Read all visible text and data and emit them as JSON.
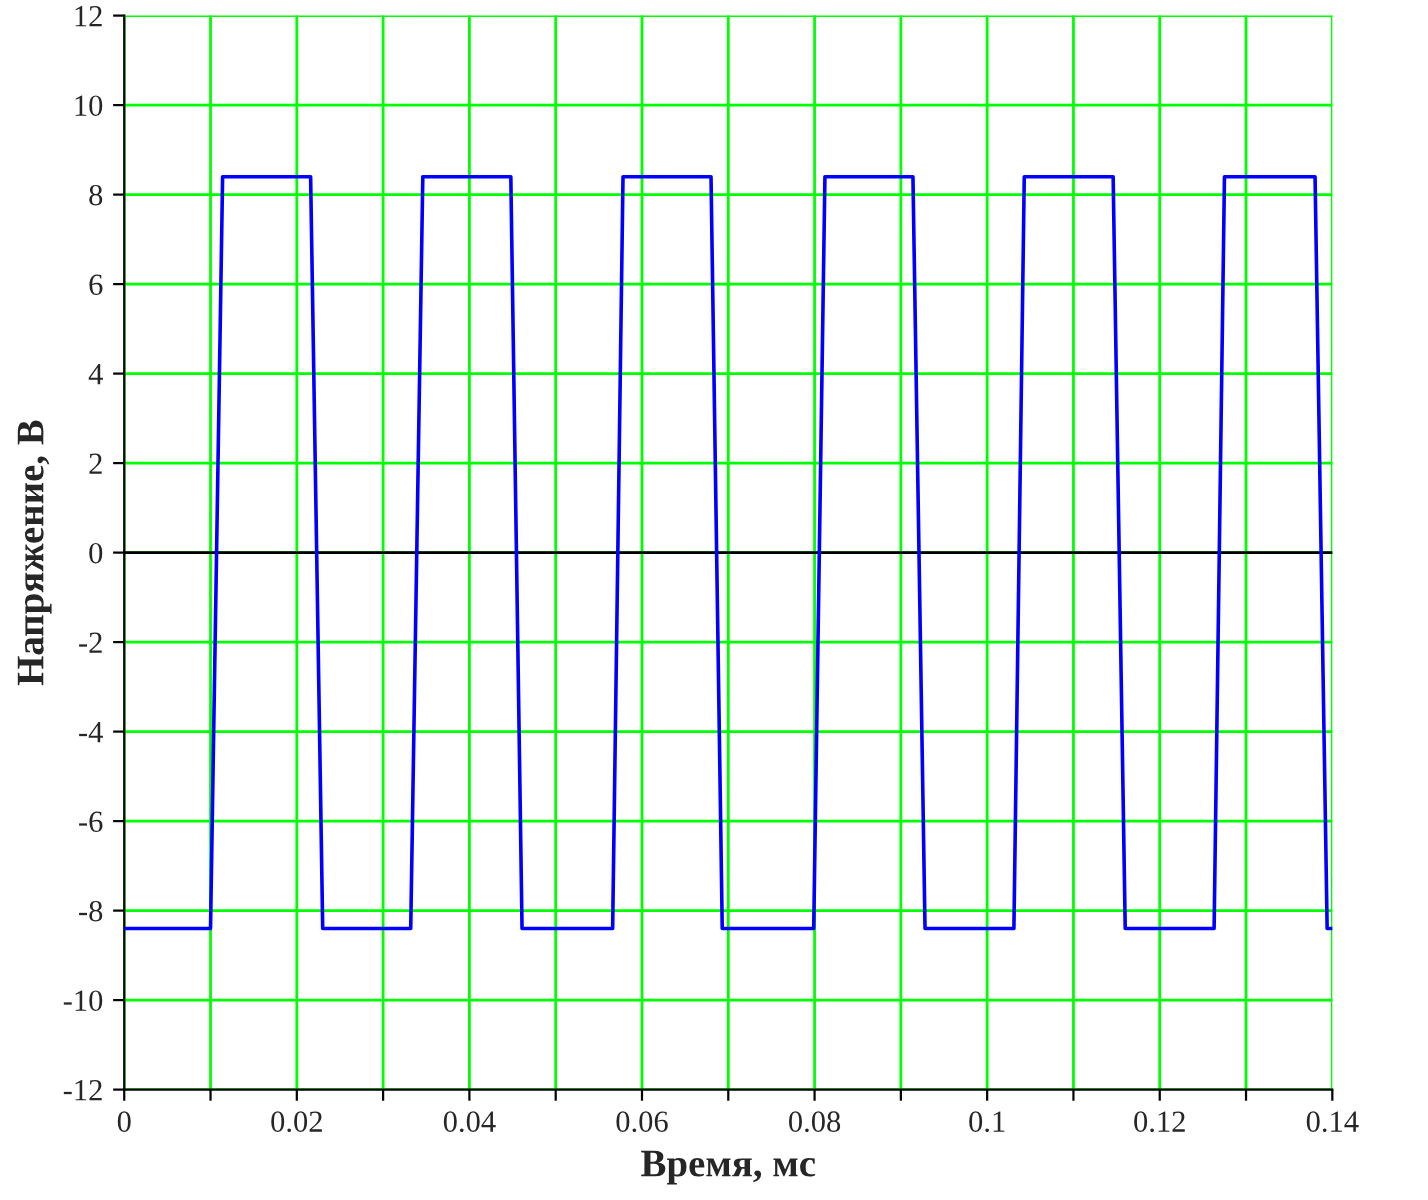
{
  "chart_data": {
    "type": "line",
    "xlabel": "Время, мс",
    "ylabel": "Напряжение, В",
    "xlim": [
      0,
      0.14
    ],
    "ylim": [
      -12,
      12
    ],
    "xticks": [
      0,
      {
        "value": 0.01,
        "label": null
      },
      0.02,
      {
        "value": 0.03,
        "label": null
      },
      0.04,
      {
        "value": 0.05,
        "label": null
      },
      0.06,
      {
        "value": 0.07,
        "label": null
      },
      0.08,
      {
        "value": 0.09,
        "label": null
      },
      0.1,
      {
        "value": 0.11,
        "label": null
      },
      0.12,
      {
        "value": 0.13,
        "label": null
      },
      0.14
    ],
    "yticks": [
      -12,
      -10,
      -8,
      -6,
      -4,
      -2,
      0,
      2,
      4,
      6,
      8,
      10,
      12
    ],
    "grid": true,
    "ref_lines": [
      {
        "axis": "y",
        "value": 0,
        "color": "#000000"
      }
    ],
    "series": [
      {
        "color": "#0000ff",
        "x": [
          0,
          0.01,
          0.0114,
          0.0216,
          0.023,
          0.0332,
          0.0346,
          0.0448,
          0.0461,
          0.0566,
          0.0578,
          0.068,
          0.0693,
          0.0799,
          0.0812,
          0.0914,
          0.0928,
          0.1031,
          0.1043,
          0.1146,
          0.116,
          0.1263,
          0.1275,
          0.138,
          0.1394,
          0.14
        ],
        "values": [
          -8.4,
          -8.4,
          8.4,
          8.4,
          -8.4,
          -8.4,
          8.4,
          8.4,
          -8.4,
          -8.4,
          8.4,
          8.4,
          -8.4,
          -8.4,
          8.4,
          8.4,
          -8.4,
          -8.4,
          8.4,
          8.4,
          -8.4,
          -8.4,
          8.4,
          8.4,
          -8.4,
          -8.4
        ]
      }
    ]
  }
}
